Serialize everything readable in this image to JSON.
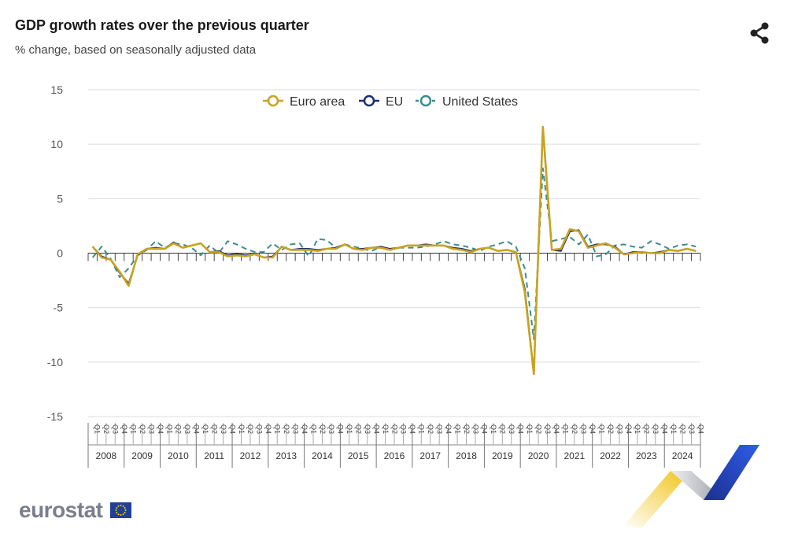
{
  "header": {
    "title": "GDP growth rates over the previous quarter",
    "subtitle": "% change, based on seasonally adjusted data",
    "share_icon": "share-icon"
  },
  "footer": {
    "logo_text": "eurostat",
    "flag_icon": "eu-flag-icon"
  },
  "colors": {
    "euro_area": "#c9a31f",
    "eu": "#1d2f6f",
    "united_states": "#3d8c8c",
    "grid": "#dddddd",
    "axis_text": "#555555"
  },
  "chart_data": {
    "type": "line",
    "ylim": [
      -15,
      15
    ],
    "yticks": [
      15,
      10,
      5,
      0,
      -5,
      -10,
      -15
    ],
    "grid": true,
    "legend_position": "top-center",
    "quarter_labels": [
      "Q1",
      "Q2",
      "Q3",
      "Q4"
    ],
    "years": [
      "2008",
      "2009",
      "2010",
      "2011",
      "2012",
      "2013",
      "2014",
      "2015",
      "2016",
      "2017",
      "2018",
      "2019",
      "2020",
      "2021",
      "2022",
      "2023",
      "2024"
    ],
    "series": [
      {
        "name": "Euro area",
        "values": [
          0.6,
          -0.4,
          -0.6,
          -1.7,
          -3.0,
          -0.1,
          0.4,
          0.4,
          0.4,
          0.9,
          0.5,
          0.7,
          0.9,
          0.1,
          0.1,
          -0.3,
          -0.2,
          -0.3,
          -0.1,
          -0.4,
          -0.4,
          0.6,
          0.3,
          0.3,
          0.3,
          0.2,
          0.4,
          0.4,
          0.8,
          0.4,
          0.3,
          0.5,
          0.5,
          0.3,
          0.5,
          0.7,
          0.7,
          0.7,
          0.7,
          0.7,
          0.4,
          0.3,
          0.1,
          0.4,
          0.5,
          0.2,
          0.3,
          0.1,
          -3.6,
          -11.1,
          11.6,
          0.3,
          0.4,
          2.2,
          2.0,
          0.5,
          0.7,
          0.9,
          0.5,
          -0.1,
          0.0,
          0.1,
          0.0,
          0.0,
          0.3,
          0.2,
          0.4,
          0.2
        ]
      },
      {
        "name": "EU",
        "values": [
          0.6,
          -0.3,
          -0.6,
          -1.8,
          -2.8,
          -0.2,
          0.4,
          0.5,
          0.4,
          1.0,
          0.5,
          0.7,
          0.9,
          0.1,
          0.2,
          -0.2,
          -0.1,
          -0.2,
          -0.1,
          -0.4,
          -0.3,
          0.6,
          0.3,
          0.4,
          0.4,
          0.3,
          0.4,
          0.5,
          0.8,
          0.4,
          0.4,
          0.5,
          0.6,
          0.4,
          0.5,
          0.7,
          0.7,
          0.8,
          0.7,
          0.7,
          0.5,
          0.4,
          0.2,
          0.4,
          0.5,
          0.2,
          0.3,
          0.1,
          -3.3,
          -11.0,
          11.4,
          0.3,
          0.2,
          2.0,
          2.1,
          0.6,
          0.8,
          0.8,
          0.6,
          -0.1,
          0.1,
          0.1,
          0.0,
          0.1,
          0.3,
          0.2,
          0.4,
          0.2
        ]
      },
      {
        "name": "United States",
        "values": [
          -0.4,
          0.6,
          -0.5,
          -2.2,
          -1.4,
          -0.2,
          0.3,
          1.1,
          0.5,
          0.9,
          0.8,
          0.5,
          -0.2,
          0.7,
          0.0,
          1.1,
          0.8,
          0.4,
          0.1,
          0.1,
          0.9,
          0.3,
          0.8,
          0.9,
          -0.3,
          1.3,
          1.2,
          0.5,
          0.8,
          0.6,
          0.4,
          0.2,
          0.6,
          0.3,
          0.5,
          0.5,
          0.5,
          0.6,
          0.8,
          1.1,
          0.8,
          0.7,
          0.5,
          0.2,
          0.6,
          0.8,
          1.1,
          0.6,
          -1.4,
          -7.9,
          7.8,
          1.1,
          1.3,
          1.5,
          0.8,
          1.7,
          -0.3,
          -0.1,
          0.7,
          0.8,
          0.6,
          0.5,
          1.1,
          0.8,
          0.4,
          0.7,
          0.8,
          0.6
        ]
      }
    ]
  }
}
